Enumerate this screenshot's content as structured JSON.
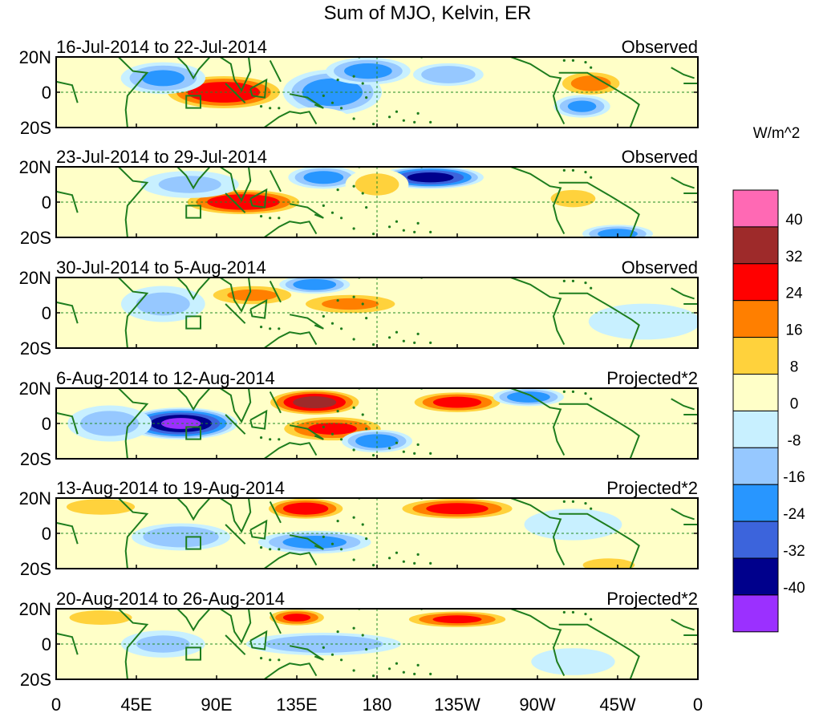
{
  "chart_data": {
    "type": "heatmap",
    "title": "Sum of MJO, Kelvin, ER",
    "x_tick_labels": [
      "0",
      "45E",
      "90E",
      "135E",
      "180",
      "135W",
      "90W",
      "45W",
      "0"
    ],
    "x_ticks_deg": [
      0,
      45,
      90,
      135,
      180,
      225,
      270,
      315,
      360
    ],
    "y_tick_labels": [
      "20N",
      "0",
      "20S"
    ],
    "y_ticks_deg": [
      20,
      0,
      -20
    ],
    "xlim_deg": [
      0,
      360
    ],
    "ylim_deg": [
      -20,
      20
    ],
    "colorbar": {
      "unit": "W/m^2",
      "levels": [
        40,
        32,
        24,
        16,
        8,
        0,
        -8,
        -16,
        -24,
        -32,
        -40
      ],
      "colors_top_to_bottom": [
        "#ff69b4",
        "#9e2a2a",
        "#ff0000",
        "#ff7f00",
        "#ffd23c",
        "#ffffc8",
        "#c8f0ff",
        "#96c8ff",
        "#2896ff",
        "#3c64dc",
        "#00008c",
        "#9b30ff"
      ]
    },
    "panels": [
      {
        "period": "16-Jul-2014 to 22-Jul-2014",
        "type_label": "Observed",
        "anomalies": [
          {
            "lon": 94,
            "lat": 0,
            "value": 32,
            "sx": 18,
            "sy": 8
          },
          {
            "lon": 60,
            "lat": 8,
            "value": -18,
            "sx": 12,
            "sy": 7
          },
          {
            "lon": 155,
            "lat": 0,
            "value": -22,
            "sx": 14,
            "sy": 10
          },
          {
            "lon": 175,
            "lat": 12,
            "value": -20,
            "sx": 12,
            "sy": 6
          },
          {
            "lon": 220,
            "lat": 10,
            "value": -16,
            "sx": 10,
            "sy": 5
          },
          {
            "lon": 300,
            "lat": 5,
            "value": 20,
            "sx": 10,
            "sy": 6
          },
          {
            "lon": 295,
            "lat": -8,
            "value": -18,
            "sx": 8,
            "sy": 5
          },
          {
            "lon": 145,
            "lat": -15,
            "value": 8,
            "sx": 10,
            "sy": 5
          }
        ]
      },
      {
        "period": "23-Jul-2014 to 29-Jul-2014",
        "type_label": "Observed",
        "anomalies": [
          {
            "lon": 105,
            "lat": 0,
            "value": 32,
            "sx": 18,
            "sy": 6
          },
          {
            "lon": 150,
            "lat": 14,
            "value": -20,
            "sx": 10,
            "sy": 5
          },
          {
            "lon": 210,
            "lat": 14,
            "value": -36,
            "sx": 15,
            "sy": 5
          },
          {
            "lon": 180,
            "lat": 10,
            "value": 12,
            "sx": 9,
            "sy": 7
          },
          {
            "lon": 75,
            "lat": 10,
            "value": -10,
            "sx": 14,
            "sy": 6
          },
          {
            "lon": 315,
            "lat": -18,
            "value": -20,
            "sx": 10,
            "sy": 4
          },
          {
            "lon": 290,
            "lat": 2,
            "value": 10,
            "sx": 10,
            "sy": 6
          }
        ]
      },
      {
        "period": "30-Jul-2014 to 5-Aug-2014",
        "type_label": "Observed",
        "anomalies": [
          {
            "lon": 165,
            "lat": 5,
            "value": 18,
            "sx": 16,
            "sy": 5
          },
          {
            "lon": 110,
            "lat": 10,
            "value": 18,
            "sx": 14,
            "sy": 5
          },
          {
            "lon": 145,
            "lat": 16,
            "value": -22,
            "sx": 10,
            "sy": 4
          },
          {
            "lon": 60,
            "lat": 5,
            "value": -10,
            "sx": 12,
            "sy": 8
          },
          {
            "lon": 250,
            "lat": 10,
            "value": 6,
            "sx": 22,
            "sy": 6
          },
          {
            "lon": 330,
            "lat": -5,
            "value": -8,
            "sx": 16,
            "sy": 8
          }
        ]
      },
      {
        "period": "6-Aug-2014 to 12-Aug-2014",
        "type_label": "Projected*2",
        "anomalies": [
          {
            "lon": 70,
            "lat": 0,
            "value": -42,
            "sx": 16,
            "sy": 7
          },
          {
            "lon": 145,
            "lat": 12,
            "value": 36,
            "sx": 14,
            "sy": 6
          },
          {
            "lon": 155,
            "lat": -3,
            "value": 26,
            "sx": 16,
            "sy": 6
          },
          {
            "lon": 225,
            "lat": 12,
            "value": 28,
            "sx": 14,
            "sy": 5
          },
          {
            "lon": 265,
            "lat": 15,
            "value": -22,
            "sx": 10,
            "sy": 4
          },
          {
            "lon": 180,
            "lat": -10,
            "value": -22,
            "sx": 10,
            "sy": 5
          },
          {
            "lon": 30,
            "lat": 0,
            "value": -12,
            "sx": 12,
            "sy": 8
          },
          {
            "lon": 310,
            "lat": -5,
            "value": 8,
            "sx": 14,
            "sy": 8
          }
        ]
      },
      {
        "period": "13-Aug-2014 to 19-Aug-2014",
        "type_label": "Projected*2",
        "anomalies": [
          {
            "lon": 140,
            "lat": 14,
            "value": 30,
            "sx": 12,
            "sy": 5
          },
          {
            "lon": 225,
            "lat": 14,
            "value": 28,
            "sx": 18,
            "sy": 5
          },
          {
            "lon": 145,
            "lat": -5,
            "value": -20,
            "sx": 16,
            "sy": 5
          },
          {
            "lon": 70,
            "lat": -2,
            "value": -16,
            "sx": 14,
            "sy": 6
          },
          {
            "lon": 25,
            "lat": 15,
            "value": 12,
            "sx": 14,
            "sy": 5
          },
          {
            "lon": 310,
            "lat": -18,
            "value": 14,
            "sx": 10,
            "sy": 4
          },
          {
            "lon": 290,
            "lat": 5,
            "value": -8,
            "sx": 14,
            "sy": 7
          }
        ]
      },
      {
        "period": "20-Aug-2014 to 26-Aug-2014",
        "type_label": "Projected*2",
        "anomalies": [
          {
            "lon": 135,
            "lat": 15,
            "value": 26,
            "sx": 9,
            "sy": 4
          },
          {
            "lon": 225,
            "lat": 14,
            "value": 26,
            "sx": 16,
            "sy": 4
          },
          {
            "lon": 150,
            "lat": 0,
            "value": -16,
            "sx": 22,
            "sy": 5
          },
          {
            "lon": 60,
            "lat": 0,
            "value": -10,
            "sx": 12,
            "sy": 6
          },
          {
            "lon": 25,
            "lat": 15,
            "value": 10,
            "sx": 14,
            "sy": 5
          },
          {
            "lon": 320,
            "lat": 5,
            "value": 6,
            "sx": 14,
            "sy": 8
          },
          {
            "lon": 290,
            "lat": -10,
            "value": -8,
            "sx": 12,
            "sy": 6
          }
        ]
      }
    ]
  }
}
